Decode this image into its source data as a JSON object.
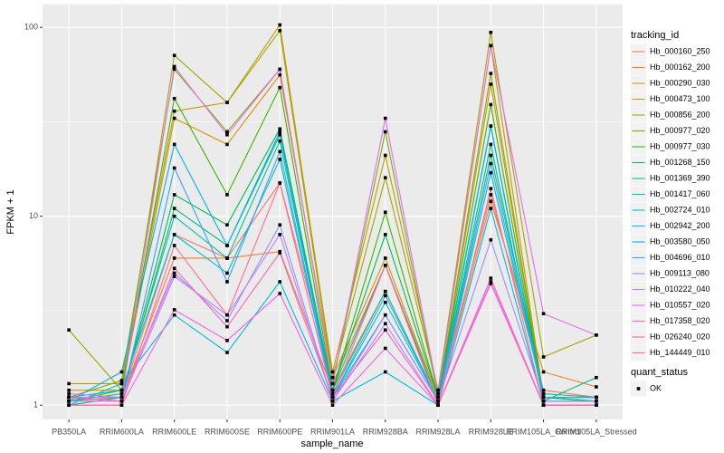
{
  "chart_data": {
    "type": "line",
    "log_scale": true,
    "grid": true,
    "x_label": "sample_name",
    "y_label": "FPKM + 1",
    "categories": [
      "PB350LA",
      "RRIM600LA",
      "RRIM600LE",
      "RRIM600SE",
      "RRIM600PE",
      "RRIM901LA",
      "RRIM928BA",
      "RRIM928LA",
      "RRIM928LE",
      "RRIM105LA_Control",
      "RRIM105LA_Stressed"
    ],
    "ylim": [
      0.84,
      132
    ],
    "yticks": [
      1,
      10,
      100
    ],
    "legend_title": "tracking_id",
    "legend_position": "right",
    "shape_legend": {
      "title": "quant_status",
      "labels": [
        "OK"
      ],
      "color": "#000000"
    },
    "series": [
      {
        "name": "Hb_000160_250",
        "color": "#F8766D",
        "values": [
          1.1,
          1.1,
          8,
          6,
          15,
          1.3,
          5.5,
          1.1,
          13,
          1.2,
          1.1
        ]
      },
      {
        "name": "Hb_000162_200",
        "color": "#EA8331",
        "values": [
          1.05,
          1.1,
          6,
          6,
          6.5,
          1.2,
          4,
          1.05,
          12,
          1.5,
          1.25
        ]
      },
      {
        "name": "Hb_000290_030",
        "color": "#D89000",
        "values": [
          1.2,
          1.2,
          33,
          24,
          56,
          1.4,
          6,
          1.1,
          50,
          1.1,
          1.05
        ]
      },
      {
        "name": "Hb_000473_100",
        "color": "#C09B00",
        "values": [
          1.3,
          1.3,
          36,
          40,
          103,
          1.5,
          21,
          1.2,
          80,
          1.1,
          1.1
        ]
      },
      {
        "name": "Hb_000856_200",
        "color": "#A3A500",
        "values": [
          2.5,
          1.2,
          71,
          40,
          96,
          1.4,
          16,
          1.2,
          94,
          1.8,
          2.35
        ]
      },
      {
        "name": "Hb_000977_020",
        "color": "#7CAE00",
        "values": [
          1.1,
          1.35,
          60,
          28,
          60,
          1.3,
          28,
          1.1,
          57,
          1.1,
          1.05
        ]
      },
      {
        "name": "Hb_000977_030",
        "color": "#39B600",
        "values": [
          1.05,
          1.2,
          42,
          13,
          48,
          1.2,
          10.5,
          1.1,
          39,
          1.1,
          1.1
        ]
      },
      {
        "name": "Hb_001268_150",
        "color": "#00BB4E",
        "values": [
          1.1,
          1.1,
          13,
          9,
          29,
          1.2,
          8,
          1.1,
          30,
          1.1,
          1.05
        ]
      },
      {
        "name": "Hb_001369_390",
        "color": "#00BF7D",
        "values": [
          1.0,
          1.1,
          11,
          7,
          27,
          1.2,
          5.5,
          1.05,
          24,
          1.05,
          1.4
        ]
      },
      {
        "name": "Hb_001417_060",
        "color": "#00C1A3",
        "values": [
          1.05,
          1.15,
          10,
          6,
          25,
          1.15,
          4,
          1.05,
          21,
          1.15,
          1.1
        ]
      },
      {
        "name": "Hb_002724_010",
        "color": "#00BFC4",
        "values": [
          1.1,
          1.2,
          8,
          5,
          20,
          1.1,
          3.5,
          1.05,
          17,
          1.1,
          1.1
        ]
      },
      {
        "name": "Hb_002942_200",
        "color": "#00BAE0",
        "values": [
          1.0,
          1.3,
          3,
          1.9,
          4.5,
          1.05,
          1.5,
          1.0,
          11,
          1.0,
          1.0
        ]
      },
      {
        "name": "Hb_003580_050",
        "color": "#00B0F6",
        "values": [
          1.05,
          1.5,
          24,
          7,
          28,
          1.1,
          3,
          1.05,
          30,
          1.05,
          1.05
        ]
      },
      {
        "name": "Hb_004696_010",
        "color": "#35A2FF",
        "values": [
          1.1,
          1.05,
          18,
          4.5,
          22,
          1.1,
          3.8,
          1.05,
          19,
          1.1,
          1.1
        ]
      },
      {
        "name": "Hb_009113_080",
        "color": "#9590FF",
        "values": [
          1.1,
          1.1,
          5,
          2.8,
          9,
          1.05,
          3,
          1.05,
          7.5,
          1.05,
          1.05
        ]
      },
      {
        "name": "Hb_010222_040",
        "color": "#C77CFF",
        "values": [
          1.05,
          1.05,
          4.8,
          3,
          8,
          1.05,
          2.7,
          1.0,
          4.5,
          1.0,
          1.0
        ]
      },
      {
        "name": "Hb_010557_020",
        "color": "#E76BF3",
        "values": [
          1.15,
          1.1,
          62,
          27,
          60,
          1.3,
          33,
          1.15,
          80,
          3.05,
          2.35
        ]
      },
      {
        "name": "Hb_017358_020",
        "color": "#FA62DB",
        "values": [
          1.0,
          1.0,
          3.2,
          2.2,
          3.9,
          1.0,
          2.0,
          1.0,
          4.4,
          1.0,
          1.0
        ]
      },
      {
        "name": "Hb_026240_020",
        "color": "#FF62BC",
        "values": [
          1.1,
          1.05,
          5.3,
          2.6,
          6.4,
          1.1,
          2.5,
          1.0,
          4.7,
          1.0,
          1.0
        ]
      },
      {
        "name": "Hb_144449_010",
        "color": "#FF6C91",
        "values": [
          1.0,
          1.0,
          7,
          3,
          15,
          1.1,
          5.5,
          1.0,
          14,
          1.0,
          1.0
        ]
      }
    ]
  }
}
